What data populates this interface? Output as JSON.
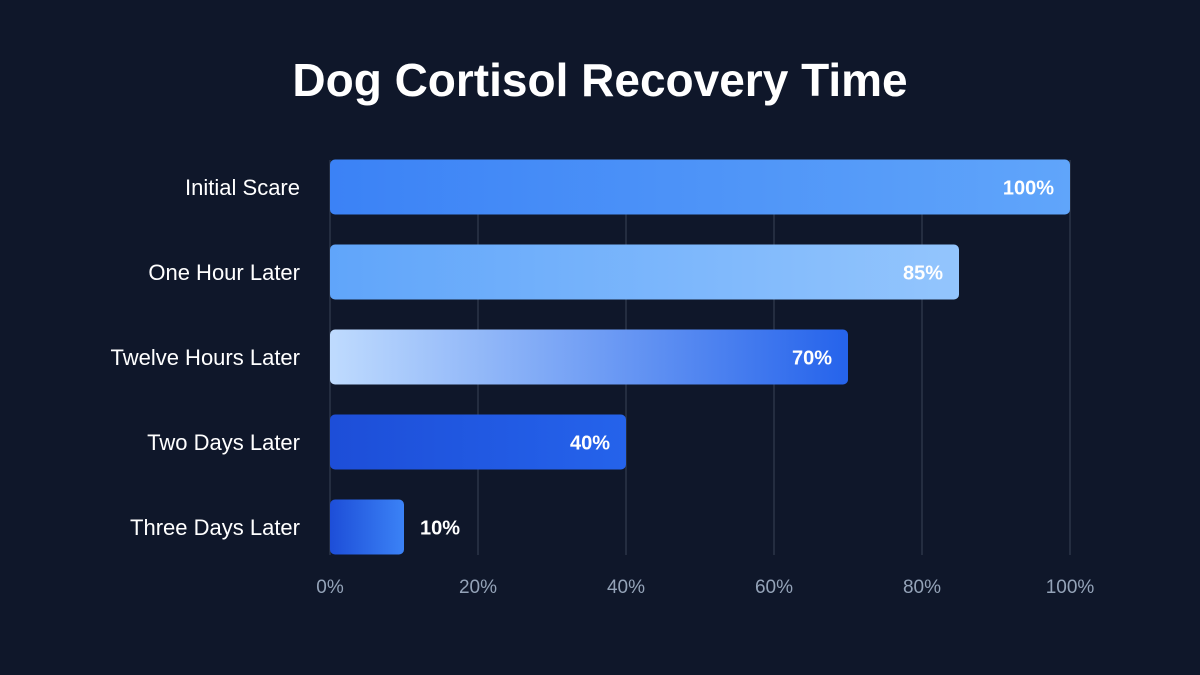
{
  "chart_data": {
    "type": "bar",
    "orientation": "horizontal",
    "title": "Dog Cortisol Recovery Time",
    "categories": [
      "Initial Scare",
      "One Hour Later",
      "Twelve Hours Later",
      "Two Days Later",
      "Three Days Later"
    ],
    "values": [
      100,
      85,
      70,
      40,
      10
    ],
    "value_labels": [
      "100%",
      "85%",
      "70%",
      "40%",
      "10%"
    ],
    "colors": [
      [
        "#3b82f6",
        "#60a5fa"
      ],
      [
        "#60a5fa",
        "#93c5fd"
      ],
      [
        "#bfdbfe",
        "#2563eb"
      ],
      [
        "#1d4ed8",
        "#2563eb"
      ],
      [
        "#1d4ed8",
        "#3b82f6"
      ]
    ],
    "xlim": [
      0,
      100
    ],
    "xticks": [
      {
        "value": 0,
        "label": "0%"
      },
      {
        "value": 20,
        "label": "20%"
      },
      {
        "value": 40,
        "label": "40%"
      },
      {
        "value": 60,
        "label": "60%"
      },
      {
        "value": 80,
        "label": "80%"
      },
      {
        "value": 100,
        "label": "100%"
      }
    ],
    "grid": true
  }
}
